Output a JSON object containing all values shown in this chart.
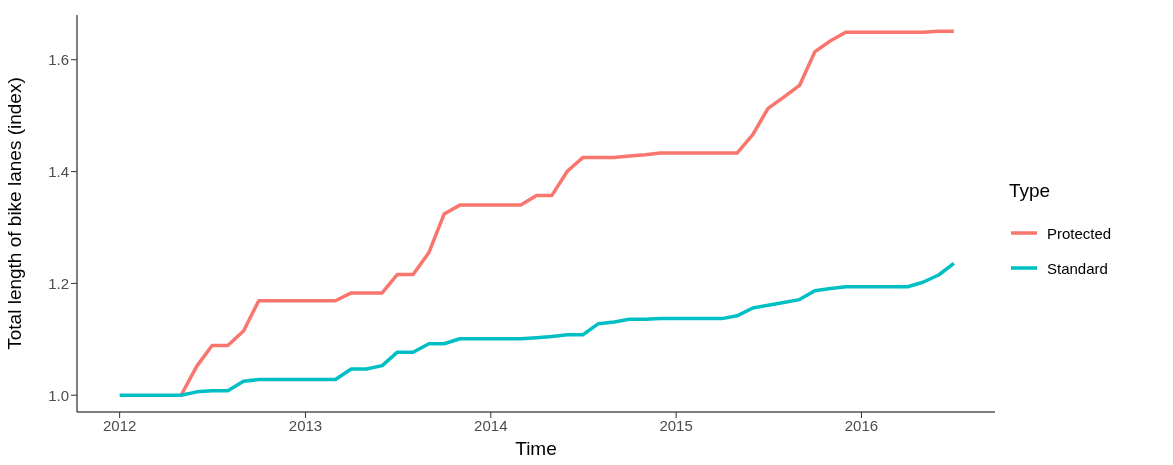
{
  "chart_data": {
    "type": "line",
    "xlabel": "Time",
    "ylabel": "Total length of bike lanes (index)",
    "legend_title": "Type",
    "x": [
      "2012-01",
      "2012-02",
      "2012-03",
      "2012-04",
      "2012-05",
      "2012-06",
      "2012-07",
      "2012-08",
      "2012-09",
      "2012-10",
      "2012-11",
      "2012-12",
      "2013-01",
      "2013-02",
      "2013-03",
      "2013-04",
      "2013-05",
      "2013-06",
      "2013-07",
      "2013-08",
      "2013-09",
      "2013-10",
      "2013-11",
      "2013-12",
      "2014-01",
      "2014-02",
      "2014-03",
      "2014-04",
      "2014-05",
      "2014-06",
      "2014-07",
      "2014-08",
      "2014-09",
      "2014-10",
      "2014-11",
      "2014-12",
      "2015-01",
      "2015-02",
      "2015-03",
      "2015-04",
      "2015-05",
      "2015-06",
      "2015-07",
      "2015-08",
      "2015-09",
      "2015-10",
      "2015-11",
      "2015-12",
      "2016-01",
      "2016-02",
      "2016-03",
      "2016-04",
      "2016-05",
      "2016-06",
      "2016-07"
    ],
    "series": [
      {
        "name": "Protected",
        "color": "#f8766d",
        "values": [
          null,
          null,
          null,
          null,
          1.0,
          1.052,
          1.089,
          1.089,
          1.115,
          1.169,
          1.169,
          1.169,
          1.169,
          1.169,
          1.169,
          1.183,
          1.183,
          1.183,
          1.216,
          1.216,
          1.255,
          1.324,
          1.34,
          1.34,
          1.34,
          1.34,
          1.34,
          1.357,
          1.357,
          1.401,
          1.425,
          1.425,
          1.425,
          1.428,
          1.43,
          1.433,
          1.433,
          1.433,
          1.433,
          1.433,
          1.433,
          1.466,
          1.513,
          1.533,
          1.554,
          1.614,
          1.634,
          1.649,
          1.649,
          1.649,
          1.649,
          1.649,
          1.649,
          1.651,
          1.651
        ]
      },
      {
        "name": "Standard",
        "color": "#00bfc4",
        "values": [
          1.0,
          1.0,
          1.0,
          1.0,
          1.0,
          1.006,
          1.008,
          1.008,
          1.025,
          1.028,
          1.028,
          1.028,
          1.028,
          1.028,
          1.028,
          1.047,
          1.047,
          1.053,
          1.077,
          1.077,
          1.092,
          1.092,
          1.101,
          1.101,
          1.101,
          1.101,
          1.101,
          1.103,
          1.105,
          1.108,
          1.108,
          1.128,
          1.131,
          1.136,
          1.136,
          1.137,
          1.137,
          1.137,
          1.137,
          1.137,
          1.142,
          1.156,
          1.161,
          1.166,
          1.171,
          1.187,
          1.191,
          1.194,
          1.194,
          1.194,
          1.194,
          1.194,
          1.202,
          1.215,
          1.236
        ]
      }
    ],
    "xlim": [
      "2011-10-09",
      "2016-09-20"
    ],
    "xticks": [
      "2012",
      "2013",
      "2014",
      "2015",
      "2016"
    ],
    "ylim": [
      0.97,
      1.68
    ],
    "yticks": [
      {
        "value": 1.0,
        "label": "1.0"
      },
      {
        "value": 1.2,
        "label": "1.2"
      },
      {
        "value": 1.4,
        "label": "1.4"
      },
      {
        "value": 1.6,
        "label": "1.6"
      }
    ],
    "grid": false,
    "legend": "right",
    "marker": "none",
    "line_style": "solid"
  }
}
